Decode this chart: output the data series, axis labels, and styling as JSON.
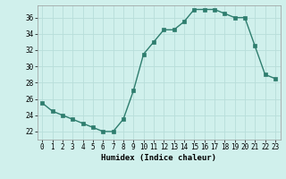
{
  "x": [
    0,
    1,
    2,
    3,
    4,
    5,
    6,
    7,
    8,
    9,
    10,
    11,
    12,
    13,
    14,
    15,
    16,
    17,
    18,
    19,
    20,
    21,
    22,
    23
  ],
  "y": [
    25.5,
    24.5,
    24.0,
    23.5,
    23.0,
    22.5,
    22.0,
    22.0,
    23.5,
    27.0,
    31.5,
    33.0,
    34.5,
    34.5,
    35.5,
    37.0,
    37.0,
    37.0,
    36.5,
    36.0,
    36.0,
    32.5,
    29.0,
    28.5
  ],
  "line_color": "#2e7d6e",
  "bg_color": "#d0f0ec",
  "grid_color": "#b8deda",
  "xlabel": "Humidex (Indice chaleur)",
  "xlim": [
    -0.5,
    23.5
  ],
  "ylim": [
    21.0,
    37.5
  ],
  "yticks": [
    22,
    24,
    26,
    28,
    30,
    32,
    34,
    36
  ],
  "markersize": 2.5,
  "linewidth": 1.0,
  "tick_fontsize": 5.5,
  "label_fontsize": 6.5
}
